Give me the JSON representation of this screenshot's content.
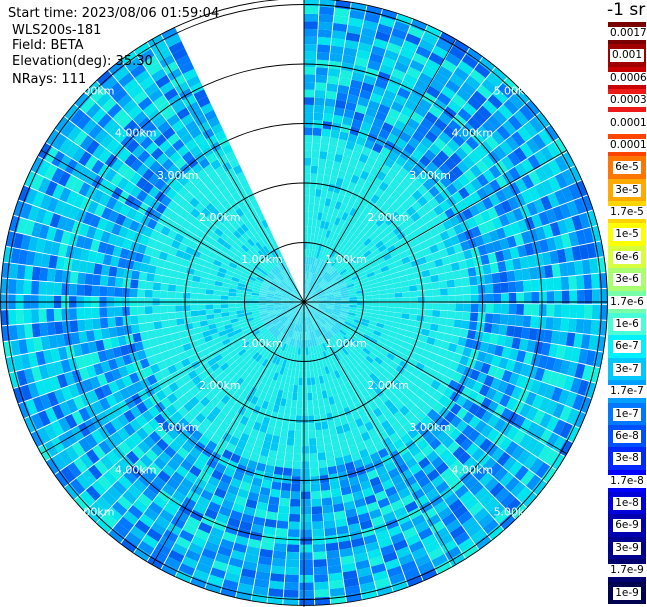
{
  "header": {
    "start_time": "Start time: 2023/08/06 01:59:04",
    "instrument": "WLS200s-181",
    "field": "Field: BETA",
    "elevation": "Elevation(deg): 35.30",
    "nrays": "NRays: 111"
  },
  "colorbar": {
    "title": "-1 sr",
    "labels": [
      "0.0017",
      "0.001",
      "0.0006",
      "0.0003",
      "0.00017",
      "0.0001",
      "6e-5",
      "3e-5",
      "1.7e-5",
      "1e-5",
      "6e-6",
      "3e-6",
      "1.7e-6",
      "1e-6",
      "6e-7",
      "3e-7",
      "1.7e-7",
      "1e-7",
      "6e-8",
      "3e-8",
      "1.7e-8",
      "1e-8",
      "6e-9",
      "3e-9",
      "1.7e-9",
      "1e-9"
    ],
    "colors": [
      "#7a0000",
      "#a00000",
      "#c80000",
      "#ee1a1a",
      "#ffffff",
      "#ff4400",
      "#ff7700",
      "#ffaa00",
      "#ffd400",
      "#ffff00",
      "#d8ff3c",
      "#a8ff70",
      "#78ffa8",
      "#48ffd8",
      "#00f0ff",
      "#00c8ff",
      "#00a0ff",
      "#0078ff",
      "#0050ff",
      "#0028ff",
      "#0000ff",
      "#0000d8",
      "#0000b0",
      "#000090",
      "#000070",
      "#000050"
    ]
  },
  "chart_data": {
    "type": "heatmap",
    "projection": "polar PPI",
    "range_labels": [
      "1.00km",
      "2.00km",
      "3.00km",
      "4.00km",
      "5.00km"
    ],
    "range_rings_km": [
      1,
      2,
      3,
      4,
      5
    ],
    "max_range_km": 5.1,
    "azimuth_spokes_deg": [
      0,
      30,
      60,
      90,
      120,
      150,
      180,
      210,
      240,
      270,
      300,
      330
    ],
    "n_rays": 111,
    "missing_sector_deg": [
      335,
      360
    ],
    "dominant_value_range": [
      "1e-7",
      "3e-8"
    ],
    "near_range_value": "3e-7"
  }
}
